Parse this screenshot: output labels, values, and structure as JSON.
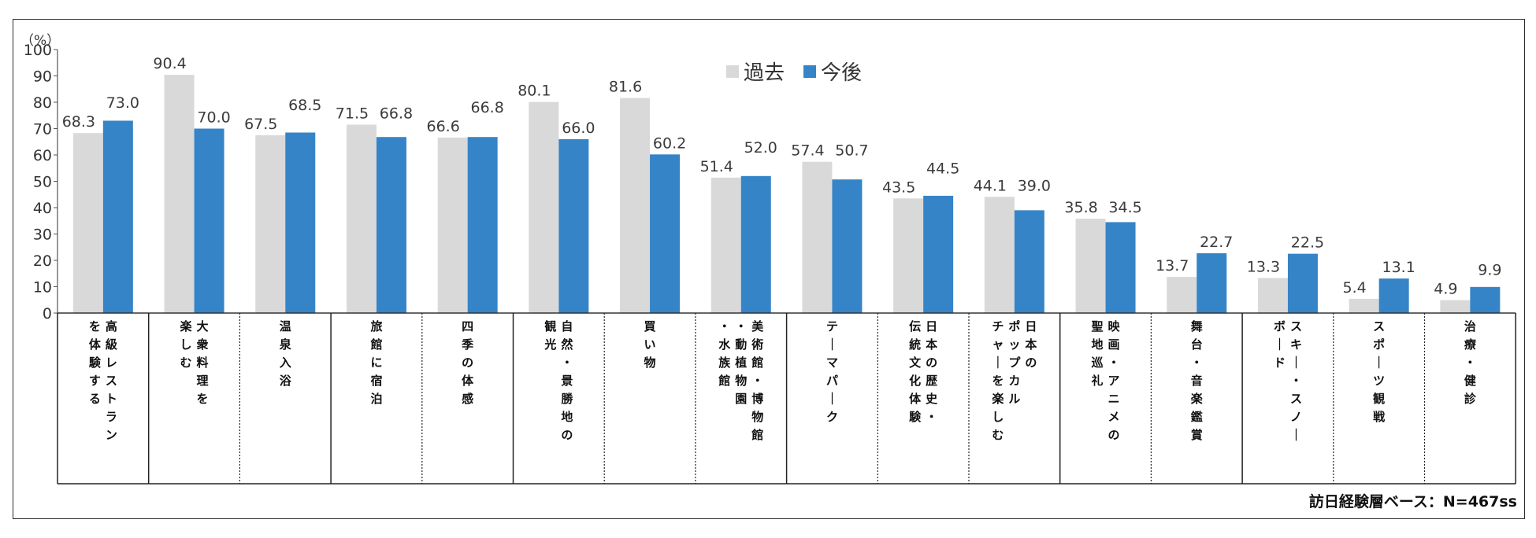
{
  "chart_data": {
    "type": "bar",
    "unit_label": "（%）",
    "ylim": [
      0,
      100
    ],
    "yticks": [
      "0",
      "10",
      "20",
      "30",
      "40",
      "50",
      "60",
      "70",
      "80",
      "90",
      "100"
    ],
    "categories": [
      "高級レストランを体験する",
      "大衆料理を楽しむ",
      "温泉入浴",
      "旅館に宿泊",
      "四季の体感",
      "自然・景勝地の観光",
      "買い物",
      "美術館・博物館・動植物園・水族館",
      "テーマパーク",
      "日本の歴史・伝統文化体験",
      "日本のポップカルチャーを楽しむ",
      "映画・アニメの聖地巡礼",
      "舞台・音楽鑑賞",
      "スキー・スノーボード",
      "スポーツ観戦",
      "治療・健診"
    ],
    "category_columns": [
      [
        "高級レストラン",
        "を体験する"
      ],
      [
        "大衆料理を",
        "楽しむ"
      ],
      [
        "温泉入浴"
      ],
      [
        "旅館に宿泊"
      ],
      [
        "四季の体感"
      ],
      [
        "自然・景勝地の",
        "観光"
      ],
      [
        "買い物"
      ],
      [
        "美術館・博物館",
        "・動植物園",
        "・水族館"
      ],
      [
        "テーマパーク"
      ],
      [
        "日本の歴史・",
        "伝統文化体験"
      ],
      [
        "日本の",
        "ポップカル",
        "チャーを楽しむ"
      ],
      [
        "映画・アニメの",
        "聖地巡礼"
      ],
      [
        "舞台・音楽鑑賞"
      ],
      [
        "スキー・スノー",
        "ボード"
      ],
      [
        "スポーツ観戦"
      ],
      [
        "治療・健診"
      ]
    ],
    "series": [
      {
        "name": "過去",
        "color": "#d9d9d9",
        "values": [
          68.3,
          90.4,
          67.5,
          71.5,
          66.6,
          80.1,
          81.6,
          51.4,
          57.4,
          43.5,
          44.1,
          35.8,
          13.7,
          13.3,
          5.4,
          4.9
        ],
        "labels": [
          "68.3",
          "90.4",
          "67.5",
          "71.5",
          "66.6",
          "80.1",
          "81.6",
          "51.4",
          "57.4",
          "43.5",
          "44.1",
          "35.8",
          "13.7",
          "13.3",
          "5.4",
          "4.9"
        ]
      },
      {
        "name": "今後",
        "color": "#3584c8",
        "values": [
          73.0,
          70.0,
          68.5,
          66.8,
          66.8,
          66.0,
          60.2,
          52.0,
          50.7,
          44.5,
          39.0,
          34.5,
          22.7,
          22.5,
          13.1,
          9.9
        ],
        "labels": [
          "73.0",
          "70.0",
          "68.5",
          "66.8",
          "66.8",
          "66.0",
          "60.2",
          "52.0",
          "50.7",
          "44.5",
          "39.0",
          "34.5",
          "22.7",
          "22.5",
          "13.1",
          "9.9"
        ]
      }
    ],
    "legend_position": "top-center",
    "grid": false,
    "note": "訪日経験層ベース：N=467ss"
  }
}
